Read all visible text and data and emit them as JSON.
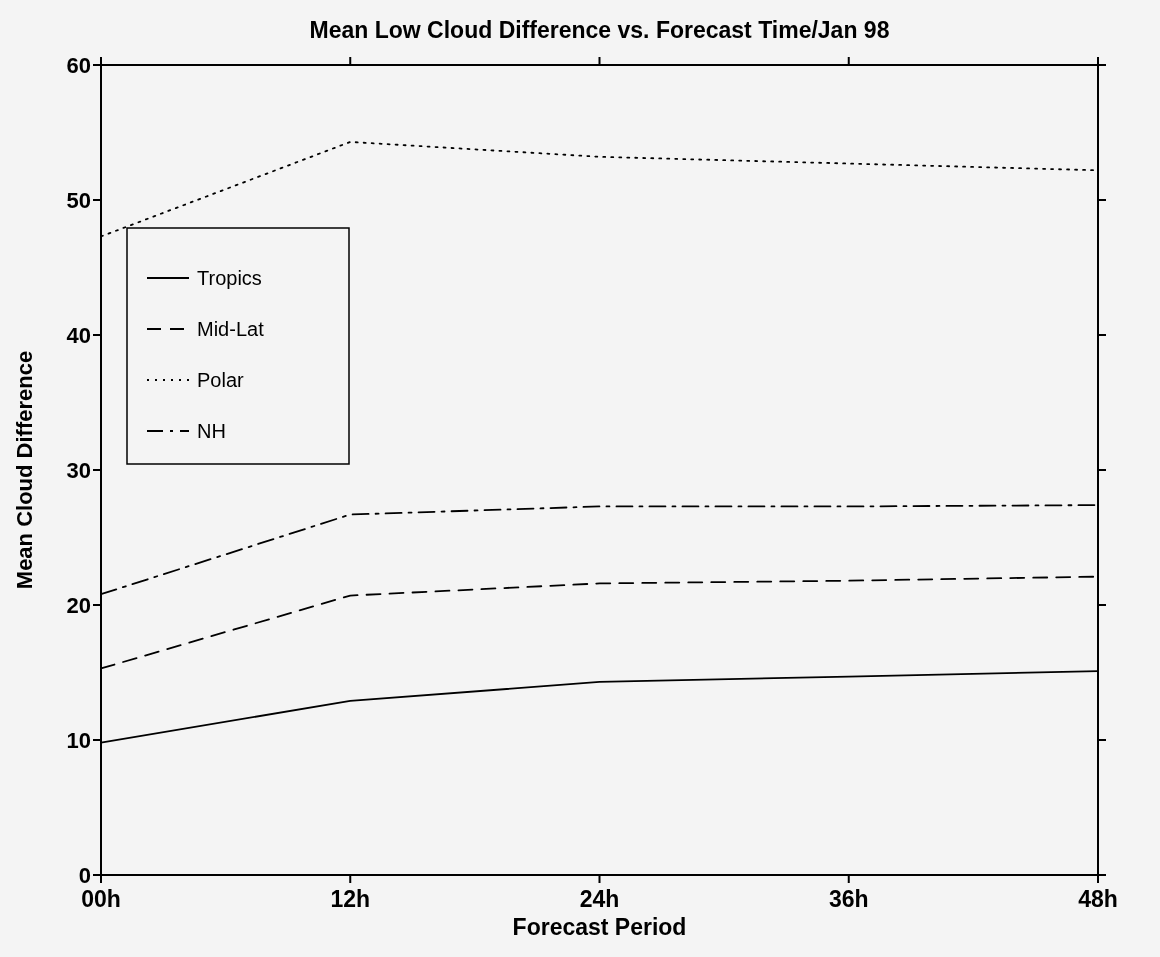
{
  "chart_data": {
    "type": "line",
    "title": "Mean Low Cloud Difference vs. Forecast Time/Jan 98",
    "xlabel": "Forecast Period",
    "ylabel": "Mean Cloud Difference",
    "x": [
      0,
      12,
      24,
      36,
      48
    ],
    "xlim": [
      0,
      48
    ],
    "xticks": [
      {
        "value": 0,
        "label": "00h"
      },
      {
        "value": 12,
        "label": "12h"
      },
      {
        "value": 24,
        "label": "24h"
      },
      {
        "value": 36,
        "label": "36h"
      },
      {
        "value": 48,
        "label": "48h"
      }
    ],
    "ylim": [
      0,
      60
    ],
    "yticks": [
      0,
      10,
      20,
      30,
      40,
      50,
      60
    ],
    "grid": false,
    "legend": "top left",
    "marker": "none",
    "series": [
      {
        "name": "Tropics",
        "color": "#000000",
        "line_style": "solid",
        "values": [
          9.8,
          12.9,
          14.3,
          14.7,
          15.1
        ]
      },
      {
        "name": "Mid-Lat",
        "color": "#000000",
        "line_style": "dashed",
        "values": [
          15.3,
          20.7,
          21.6,
          21.8,
          22.1
        ]
      },
      {
        "name": "Polar",
        "color": "#000000",
        "line_style": "dotted",
        "values": [
          47.3,
          54.3,
          53.2,
          52.7,
          52.2
        ]
      },
      {
        "name": "NH",
        "color": "#000000",
        "line_style": "dashdot",
        "values": [
          20.8,
          26.7,
          27.3,
          27.3,
          27.4
        ]
      }
    ]
  }
}
